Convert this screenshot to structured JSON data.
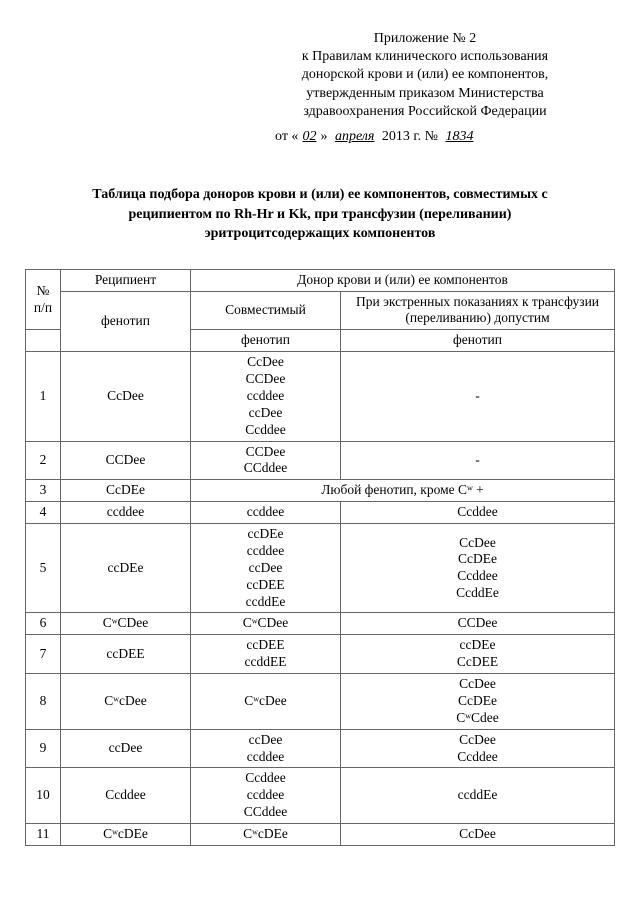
{
  "header": {
    "l1": "Приложение № 2",
    "l2": "к Правилам клинического использования",
    "l3": "донорской крови и (или) ее компонентов,",
    "l4": "утвержденным приказом Министерства",
    "l5": "здравоохранения Российской Федерации"
  },
  "date": {
    "prefix": "от «",
    "day": "02",
    "mid": "» ",
    "month": "апреля",
    "year_prefix": " 2013 г. № ",
    "number": "1834"
  },
  "title": "Таблица подбора доноров крови и (или) ее компонентов, совместимых с реципиентом по Rh-Hr и Kk, при трансфузии (переливании) эритроцитсодержащих компонентов",
  "thead": {
    "num": "№ п/п",
    "recipient": "Реципиент",
    "donor": "Донор крови и (или) ее компонентов",
    "compat": "Совместимый",
    "emerg": "При экстренных показаниях к трансфузии (переливанию) допустим",
    "phenotype": "фенотип"
  },
  "rows": [
    {
      "n": "1",
      "r": "CcDee",
      "c": "CcDee\nCCDee\nccddee\nccDee\nCcddee",
      "e": "-"
    },
    {
      "n": "2",
      "r": "CCDee",
      "c": "CCDee\nCCddee",
      "e": "-"
    },
    {
      "n": "3",
      "r": "CcDEe",
      "c_span": "Любой фенотип, кроме Cʷ +"
    },
    {
      "n": "4",
      "r": "ccddee",
      "c": "ccddee",
      "e": "Ccddee"
    },
    {
      "n": "5",
      "r": "ccDEe",
      "c": "ccDEe\nccddee\nccDee\nccDEE\nccddEe",
      "e": "CcDee\nCcDEe\nCcddee\nCcddEe"
    },
    {
      "n": "6",
      "r": "CʷCDee",
      "c": "CʷCDee",
      "e": "CCDee"
    },
    {
      "n": "7",
      "r": "ccDEE",
      "c": "ccDEE\nccddEE",
      "e": "ccDEe\nCcDEE"
    },
    {
      "n": "8",
      "r": "CʷcDee",
      "c": "CʷcDee",
      "e": "CcDee\nCcDEe\nCʷCdee"
    },
    {
      "n": "9",
      "r": "ccDee",
      "c": "ccDee\nccddee",
      "e": "CcDee\nCcddee"
    },
    {
      "n": "10",
      "r": "Ccddee",
      "c": "Ccddee\nccddee\nCCddee",
      "e": "ccddEe"
    },
    {
      "n": "11",
      "r": "CʷcDEe",
      "c": "CʷcDEe",
      "e": "CcDee"
    }
  ]
}
